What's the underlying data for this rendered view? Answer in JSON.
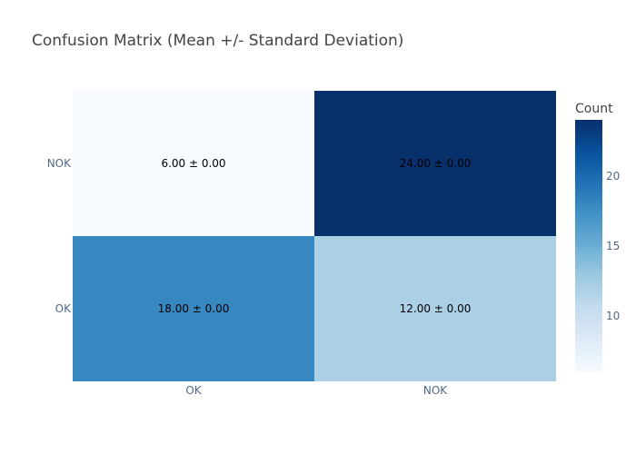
{
  "chart_data": {
    "type": "heatmap",
    "title": "Confusion Matrix (Mean +/- Standard Deviation)",
    "x_categories": [
      "OK",
      "NOK"
    ],
    "y_categories": [
      "OK",
      "NOK"
    ],
    "values": [
      [
        18,
        12
      ],
      [
        6,
        24
      ]
    ],
    "cell_labels": [
      [
        "18.00 ± 0.00",
        "12.00 ± 0.00"
      ],
      [
        "6.00 ± 0.00",
        "24.00 ± 0.00"
      ]
    ],
    "colorbar": {
      "title": "Count",
      "range": [
        6,
        24
      ],
      "ticks": [
        10,
        15,
        20
      ],
      "tick_labels": [
        "10",
        "15",
        "20"
      ]
    },
    "colorscale": [
      [
        0.0,
        "#f7fbff"
      ],
      [
        0.125,
        "#deebf7"
      ],
      [
        0.25,
        "#c6dbef"
      ],
      [
        0.375,
        "#9ecae1"
      ],
      [
        0.5,
        "#6baed6"
      ],
      [
        0.625,
        "#4292c6"
      ],
      [
        0.75,
        "#2171b5"
      ],
      [
        0.875,
        "#08519c"
      ],
      [
        1.0,
        "#08306b"
      ]
    ],
    "title_color": "#444444",
    "tick_color": "#506784",
    "label_color": "#000000"
  }
}
